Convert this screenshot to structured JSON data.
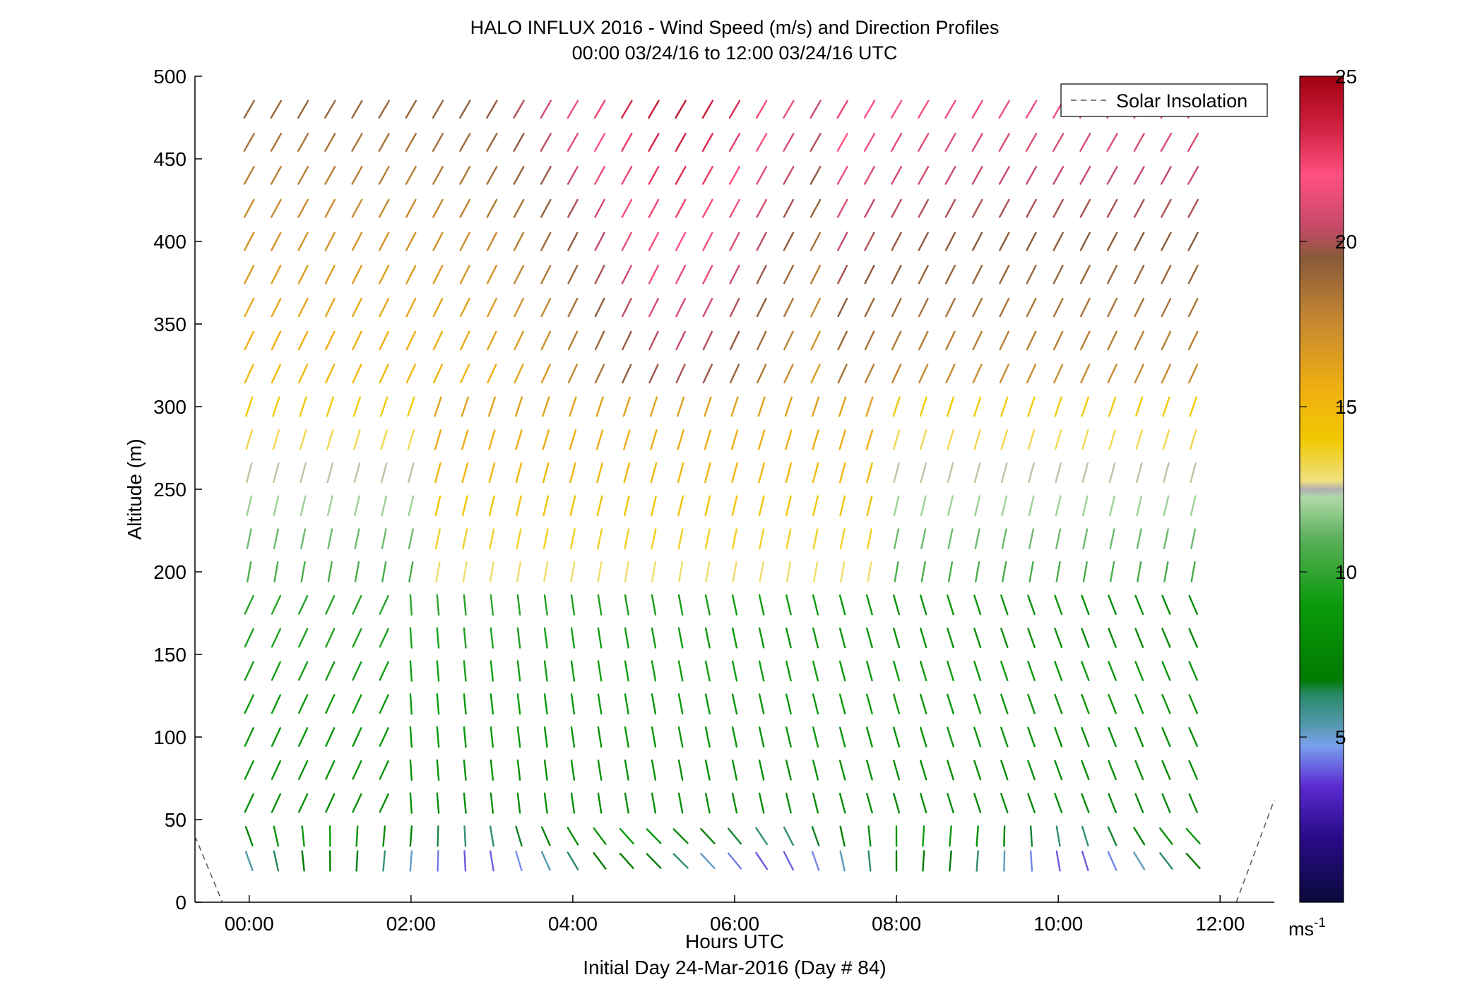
{
  "chart_data": {
    "type": "quiver",
    "title": "HALO INFLUX 2016 - Wind Speed (m/s) and Direction Profiles",
    "subtitle": "00:00 03/24/16 to 12:00 03/24/16  UTC",
    "xlabel": "Hours UTC",
    "xlabel_note": "Initial Day 24-Mar-2016 (Day # 84)",
    "ylabel": "Altitude (m)",
    "xlim": [
      -0.67,
      12.67
    ],
    "ylim": [
      0,
      500
    ],
    "x_ticks": [
      0,
      2,
      4,
      6,
      8,
      10,
      12
    ],
    "x_tick_labels": [
      "00:00",
      "02:00",
      "04:00",
      "06:00",
      "08:00",
      "10:00",
      "12:00"
    ],
    "y_ticks": [
      0,
      50,
      100,
      150,
      200,
      250,
      300,
      350,
      400,
      450,
      500
    ],
    "y_tick_labels": [
      "0",
      "50",
      "100",
      "150",
      "200",
      "250",
      "300",
      "350",
      "400",
      "450",
      "500"
    ],
    "colorbar": {
      "range": [
        0,
        25
      ],
      "ticks": [
        5,
        10,
        15,
        20,
        25
      ],
      "tick_labels": [
        "5",
        "10",
        "15",
        "20",
        "25"
      ],
      "unit_label": "ms",
      "unit_exponent": "-1"
    },
    "legend": {
      "position": "top-right",
      "entries": [
        {
          "label": "Solar Insolation",
          "style": "dashed",
          "color": "#555555"
        }
      ]
    },
    "solar_insolation": {
      "x": [
        -0.67,
        -0.33,
        12.2,
        12.67
      ],
      "y": [
        40,
        0,
        0,
        62
      ]
    },
    "wind_profiles": {
      "description_unit": "speed m/s, direction degrees (meteorological, wind from)",
      "times": [
        0,
        0.333,
        0.667,
        1,
        1.333,
        1.667,
        2,
        2.333,
        2.667,
        3,
        3.333,
        3.667,
        4,
        4.333,
        4.667,
        5,
        5.333,
        5.667,
        6,
        6.333,
        6.667,
        7,
        7.333,
        7.667,
        8,
        8.333,
        8.667,
        9,
        9.333,
        9.667,
        10,
        10.333,
        10.667,
        11,
        11.333,
        11.667
      ],
      "altitudes": [
        25,
        40,
        60,
        80,
        100,
        120,
        140,
        160,
        180,
        200,
        220,
        240,
        260,
        280,
        300,
        320,
        340,
        360,
        380,
        400,
        420,
        440,
        460,
        480
      ]
    }
  }
}
